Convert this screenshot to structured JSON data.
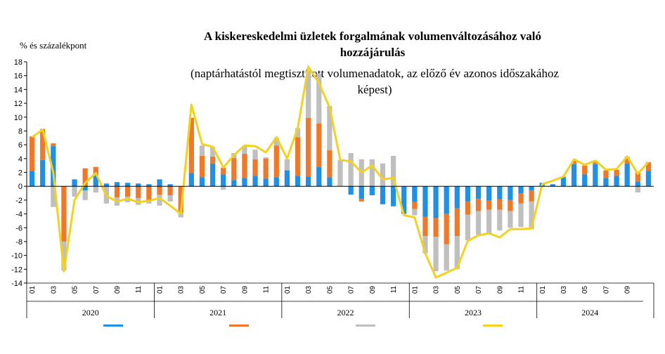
{
  "chart_data": {
    "type": "bar",
    "stacked": true,
    "title_line1": "A kiskereskedelmi üzletek forgalmának volumenváltozásához való",
    "title_line2": "hozzájárulás",
    "subtitle_line1": "(naptárhatástól megtisztított volumenadatok, az előző év azonos időszakához",
    "subtitle_line2": "képest)",
    "ylabel": "% és százalékpont",
    "ylim": [
      -14,
      18
    ],
    "yticks": [
      -14,
      -12,
      -10,
      -8,
      -6,
      -4,
      -2,
      0,
      2,
      4,
      6,
      8,
      10,
      12,
      14,
      16,
      18
    ],
    "month_ticks": [
      "01",
      "03",
      "05",
      "07",
      "09",
      "11"
    ],
    "years": [
      "2020",
      "2021",
      "2022",
      "2023",
      "2024"
    ],
    "months_per_year": 12,
    "last_year_months": 10,
    "legend_placement": "bottom",
    "grid": "none",
    "series": [
      {
        "key": "blue",
        "color": "#1E90E8",
        "values": [
          2.2,
          3.8,
          5.8,
          0,
          1.0,
          -0.6,
          1.5,
          0.4,
          0.6,
          0.5,
          0.4,
          0.3,
          1.0,
          0.3,
          0,
          1.9,
          1.3,
          3.3,
          1.7,
          0.9,
          1.2,
          1.5,
          1.1,
          1.3,
          2.3,
          1.5,
          1.4,
          2.8,
          1.3,
          0,
          -1.2,
          -1.8,
          -1.3,
          -2.6,
          -2.9,
          -4.0,
          -2.3,
          -4.4,
          -4.6,
          -4.0,
          -3.2,
          -2.2,
          -1.8,
          -2.1,
          -1.9,
          -2.0,
          -1.0,
          -0.6,
          0.5,
          0.3,
          1.3,
          3.2,
          1.7,
          3.2,
          1.2,
          1.5,
          3.3,
          0.7,
          2.2
        ]
      },
      {
        "key": "orange",
        "color": "#F07828",
        "values": [
          5.0,
          4.5,
          0.4,
          -8.0,
          0,
          2.6,
          1.3,
          0.0,
          -1.6,
          -1.5,
          -1.7,
          -2.0,
          -1.2,
          -1.3,
          -3.8,
          8.0,
          3.1,
          1.0,
          1.0,
          3.2,
          3.5,
          2.4,
          2.9,
          4.6,
          0,
          5.6,
          8.5,
          6.3,
          3.9,
          0,
          0,
          -0.4,
          0,
          0,
          0,
          0,
          -1.0,
          -2.8,
          -2.7,
          -4.4,
          -4.0,
          -1.9,
          -1.8,
          -1.3,
          -1.5,
          -1.6,
          -1.5,
          -1.6,
          0,
          0,
          0.1,
          0.5,
          1.3,
          0.5,
          1.1,
          0.9,
          0.8,
          1.3,
          1.3
        ]
      },
      {
        "key": "gray",
        "color": "#BFBFBF",
        "values": [
          0,
          0,
          -3.0,
          -4.2,
          -1.5,
          -1.4,
          -0.9,
          -2.5,
          -1.2,
          -0.8,
          -1.0,
          -0.5,
          -1.6,
          -0.9,
          -0.7,
          0,
          1.5,
          1.4,
          -0.5,
          0.7,
          1.1,
          1.4,
          0.2,
          1.1,
          1.6,
          1.3,
          6.8,
          7.2,
          6.4,
          3.8,
          4.8,
          3.9,
          3.9,
          3.3,
          4.4,
          0,
          -0.9,
          -2.5,
          -5.0,
          -3.8,
          -4.8,
          -3.7,
          -3.4,
          -3.6,
          -3.0,
          -2.4,
          -3.4,
          -4.0,
          0,
          0,
          0,
          0,
          0,
          0,
          0,
          0,
          0.2,
          -0.9,
          0
        ]
      },
      {
        "key": "total",
        "type": "line",
        "color": "#F2D21E",
        "values": [
          7.1,
          8.2,
          2.0,
          -12.3,
          -2.0,
          0.5,
          1.9,
          -1.4,
          -2.2,
          -1.8,
          -2.3,
          -2.1,
          -1.7,
          -2.8,
          -4.0,
          11.8,
          6.1,
          5.7,
          2.7,
          4.5,
          5.9,
          5.8,
          4.9,
          7.1,
          4.0,
          8.4,
          17.3,
          14.9,
          11.4,
          3.8,
          3.6,
          2.0,
          3.0,
          1.0,
          1.2,
          -4.2,
          -4.5,
          -9.7,
          -13.2,
          -12.5,
          -11.8,
          -7.9,
          -7.1,
          -6.8,
          -7.4,
          -6.2,
          -6.2,
          -6.1,
          0.3,
          0.8,
          1.4,
          3.9,
          3.1,
          3.7,
          2.4,
          2.5,
          4.3,
          1.8,
          3.5
        ]
      }
    ]
  }
}
